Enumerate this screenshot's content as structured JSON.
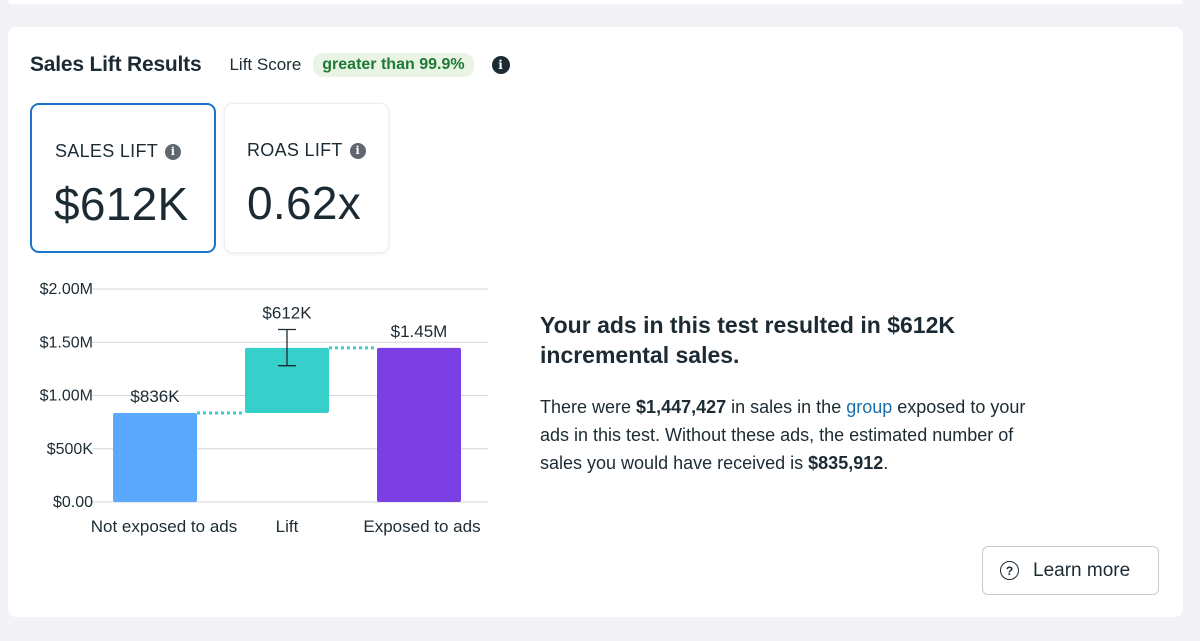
{
  "header": {
    "title": "Sales Lift Results",
    "lift_score_label": "Lift Score",
    "lift_score_value": "greater than 99.9%"
  },
  "metrics": {
    "sales": {
      "label": "SALES LIFT",
      "value": "$612K"
    },
    "roas": {
      "label": "ROAS LIFT",
      "value": "0.62x"
    }
  },
  "chart_data": {
    "type": "bar",
    "categories": [
      "Not exposed to ads",
      "Lift",
      "Exposed to ads"
    ],
    "values": [
      835912,
      611515,
      1447427
    ],
    "bar_base": [
      0,
      835912,
      0
    ],
    "data_labels": [
      "$836K",
      "$612K",
      "$1.45M"
    ],
    "error_bar": {
      "category": "Lift",
      "low": 1280000,
      "high": 1620000
    },
    "y_ticks": [
      0,
      500000,
      1000000,
      1500000,
      2000000
    ],
    "y_tick_labels": [
      "$0.00",
      "$500K",
      "$1.00M",
      "$1.50M",
      "$2.00M"
    ],
    "ylim": [
      0,
      2000000
    ],
    "colors": [
      "#5aa9ff",
      "#36cfc9",
      "#7b3fe4"
    ],
    "connector_color": "#36cfc9",
    "grid": true
  },
  "summary": {
    "headline": "Your ads in this test resulted in $612K incremental sales.",
    "p_before": "There were ",
    "p_exposed_sales": "$1,447,427",
    "p_mid1": " in sales in the ",
    "p_link": "group",
    "p_mid2": " exposed to your ads in this test. Without these ads, the estimated number of sales you would have received is ",
    "p_baseline_sales": "$835,912",
    "p_end": "."
  },
  "learn_more": {
    "label": "Learn more",
    "icon": "question-circle-icon"
  },
  "icons": {
    "info": "info-icon"
  }
}
